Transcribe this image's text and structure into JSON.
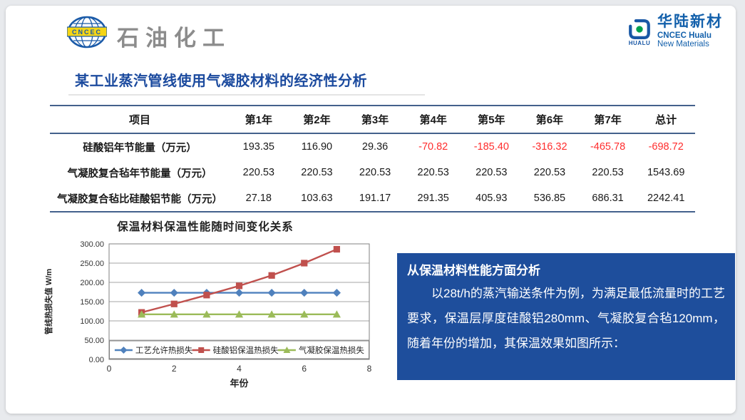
{
  "header": {
    "cncec_logo_text": "CNCEC",
    "brand_left": "石油化工",
    "hualu": {
      "logo_caption": "HUALU",
      "name_cn": "华陆新材",
      "name_en_1": "CNCEC Hualu",
      "name_en_2": "New Materials"
    }
  },
  "title": "某工业蒸汽管线使用气凝胶材料的经济性分析",
  "table": {
    "columns": [
      "项目",
      "第1年",
      "第2年",
      "第3年",
      "第4年",
      "第5年",
      "第6年",
      "第7年",
      "总计"
    ],
    "rows": [
      {
        "label": "硅酸铝年节能量（万元）",
        "values": [
          "193.35",
          "116.90",
          "29.36",
          "-70.82",
          "-185.40",
          "-316.32",
          "-465.78",
          "-698.72"
        ]
      },
      {
        "label": "气凝胶复合毡年节能量（万元）",
        "values": [
          "220.53",
          "220.53",
          "220.53",
          "220.53",
          "220.53",
          "220.53",
          "220.53",
          "1543.69"
        ]
      },
      {
        "label": "气凝胶复合毡比硅酸铝节能（万元）",
        "values": [
          "27.18",
          "103.63",
          "191.17",
          "291.35",
          "405.93",
          "536.85",
          "686.31",
          "2242.41"
        ]
      }
    ]
  },
  "chart_data": {
    "type": "line",
    "title": "保温材料保温性能随时间变化关系",
    "xlabel": "年份",
    "ylabel": "管线热损失值 W/m",
    "x": [
      1,
      2,
      3,
      4,
      5,
      6,
      7
    ],
    "xlim": [
      0,
      8
    ],
    "xticks": [
      0,
      2,
      4,
      6,
      8
    ],
    "ylim": [
      0,
      300
    ],
    "ytick_step": 50,
    "grid": true,
    "legend_position": "bottom-inside",
    "series": [
      {
        "name": "工艺允许热损失",
        "marker": "diamond",
        "color": "#4F81BD",
        "values": [
          173,
          173,
          173,
          173,
          173,
          173,
          173
        ]
      },
      {
        "name": "硅酸铝保温热损失",
        "marker": "square",
        "color": "#C0504D",
        "values": [
          122,
          144,
          167,
          191,
          218,
          250,
          286
        ]
      },
      {
        "name": "气凝胶保温热损失",
        "marker": "triangle",
        "color": "#9BBB59",
        "values": [
          117,
          117,
          117,
          117,
          117,
          117,
          117
        ]
      }
    ]
  },
  "info_box": {
    "heading": "从保温材料性能方面分析",
    "body": "以28t/h的蒸汽输送条件为例，为满足最低流量时的工艺要求，保温层厚度硅酸铝280mm、气凝胶复合毡120mm，随着年份的增加，其保温效果如图所示："
  },
  "colors": {
    "title_blue": "#1b4a9e",
    "table_rule": "#44618c",
    "negative_value": "#ff2d2d",
    "info_box_bg": "#1e4e9c",
    "grid_line": "#a6a6a6",
    "plot_border": "#808080"
  }
}
